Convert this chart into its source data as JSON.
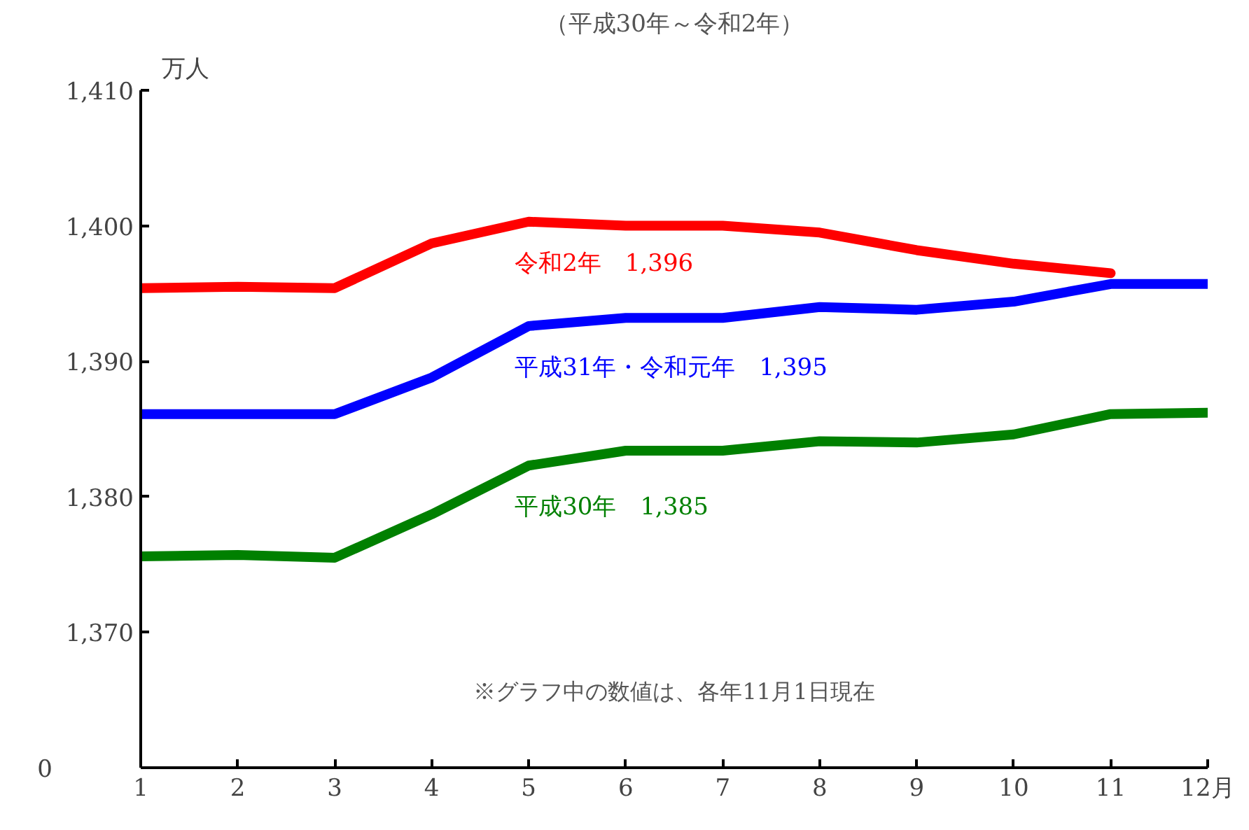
{
  "chart_data": {
    "type": "line",
    "title": "（平成30年～令和2年）",
    "ylabel": "万人",
    "x": [
      1,
      2,
      3,
      4,
      5,
      6,
      7,
      8,
      9,
      10,
      11,
      12
    ],
    "xlim": [
      1,
      12
    ],
    "xticks": [
      1,
      2,
      3,
      4,
      5,
      6,
      7,
      8,
      9,
      10,
      11,
      {
        "value": 12,
        "label": "12月"
      }
    ],
    "ylim": [
      1360,
      1410
    ],
    "yticks": [
      {
        "value": 1370,
        "label": "1,370"
      },
      {
        "value": 1380,
        "label": "1,380"
      },
      {
        "value": 1390,
        "label": "1,390"
      },
      {
        "value": 1400,
        "label": "1,400"
      },
      {
        "value": 1410,
        "label": "1,410"
      }
    ],
    "grid": false,
    "legend": false,
    "line_style": "solid",
    "series": [
      {
        "name": "令和2年　1,396",
        "color": "#ff0000",
        "values": [
          1395.4,
          1395.5,
          1395.4,
          1398.7,
          1400.3,
          1400.0,
          1400.0,
          1399.5,
          1398.2,
          1397.2,
          1396.5,
          null
        ]
      },
      {
        "name": "平成31年・令和元年　1,395",
        "color": "#0000ff",
        "values": [
          1386.1,
          1386.1,
          1386.1,
          1388.8,
          1392.6,
          1393.2,
          1393.2,
          1394.0,
          1393.8,
          1394.4,
          1395.7,
          1395.7
        ]
      },
      {
        "name": "平成30年　1,385",
        "color": "#008000",
        "values": [
          1375.6,
          1375.7,
          1375.5,
          1378.7,
          1382.3,
          1383.4,
          1383.4,
          1384.1,
          1384.0,
          1384.6,
          1386.1,
          1386.2
        ]
      }
    ],
    "annotations": [
      "※グラフ中の数値は、各年11月1日現在",
      "0"
    ]
  }
}
